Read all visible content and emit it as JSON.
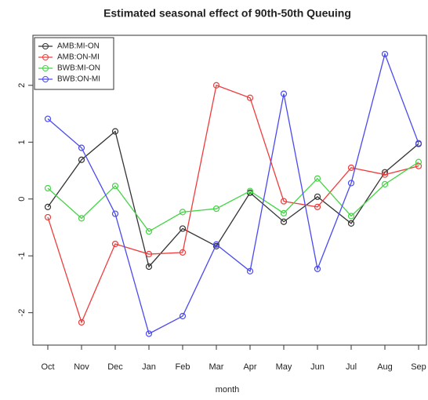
{
  "chart_data": {
    "type": "line",
    "title": "Estimated seasonal effect of 90th-50th Queuing",
    "x_label": "month",
    "categories": [
      "Oct",
      "Nov",
      "Dec",
      "Jan",
      "Feb",
      "Mar",
      "Apr",
      "May",
      "Jun",
      "Jul",
      "Aug",
      "Sep"
    ],
    "series": [
      {
        "name": "AMB:MI-ON",
        "color": "#333333",
        "values": [
          -0.14,
          0.69,
          1.19,
          -1.19,
          -0.52,
          -0.83,
          0.11,
          -0.4,
          0.04,
          -0.43,
          0.47,
          0.97
        ]
      },
      {
        "name": "AMB:ON-MI",
        "color": "#f03c3c",
        "values": [
          -0.32,
          -2.17,
          -0.79,
          -0.97,
          -0.94,
          2.0,
          1.78,
          -0.04,
          -0.14,
          0.55,
          0.43,
          0.58
        ]
      },
      {
        "name": "BWB:MI-ON",
        "color": "#44d444",
        "values": [
          0.19,
          -0.34,
          0.23,
          -0.57,
          -0.23,
          -0.17,
          0.14,
          -0.25,
          0.36,
          -0.3,
          0.26,
          0.65
        ]
      },
      {
        "name": "BWB:ON-MI",
        "color": "#4a4af0",
        "values": [
          1.41,
          0.9,
          -0.26,
          -2.37,
          -2.06,
          -0.8,
          -1.27,
          1.85,
          -1.23,
          0.28,
          2.55,
          0.98
        ]
      }
    ],
    "ylim": [
      -2.57,
      2.88
    ],
    "yticks": [
      -2,
      -1,
      0,
      1,
      2
    ],
    "legend": "top-left"
  }
}
